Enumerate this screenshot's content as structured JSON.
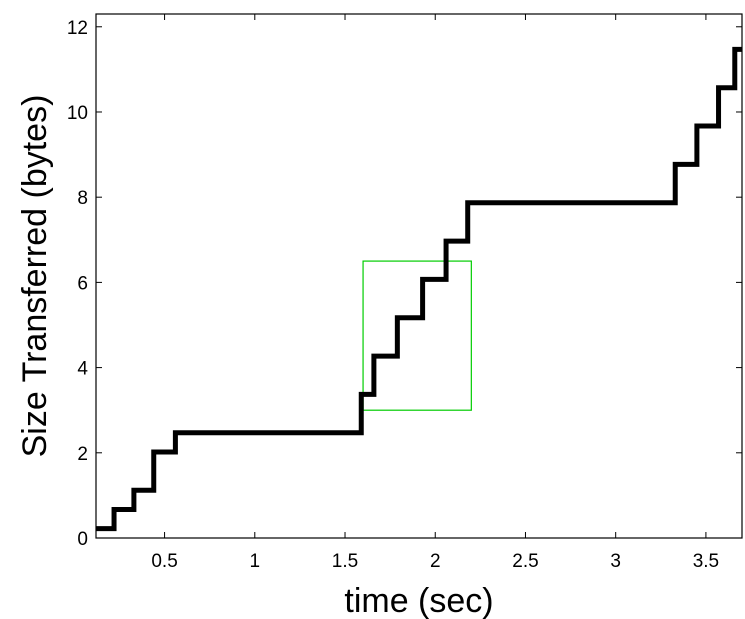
{
  "chart_data": {
    "type": "line",
    "title": "",
    "xlabel": "time (sec)",
    "ylabel": "Size Transferred (bytes)",
    "xlim": [
      0.12,
      3.7
    ],
    "ylim": [
      0,
      12.3
    ],
    "xticks": [
      0.5,
      1,
      1.5,
      2,
      2.5,
      3,
      3.5
    ],
    "xtick_labels": [
      "0.5",
      "1",
      "1.5",
      "2",
      "2.5",
      "3",
      "3.5"
    ],
    "yticks": [
      0,
      2,
      4,
      6,
      8,
      10,
      12
    ],
    "ytick_labels": [
      "0",
      "2",
      "4",
      "6",
      "8",
      "10",
      "12"
    ],
    "grid": false,
    "series": [
      {
        "color": "#000000",
        "step": true,
        "x": [
          0.12,
          0.22,
          0.33,
          0.44,
          0.56,
          1.59,
          1.66,
          1.79,
          1.93,
          2.06,
          2.18,
          3.33,
          3.45,
          3.57,
          3.66,
          3.7
        ],
        "y": [
          0.22,
          0.67,
          1.12,
          2.02,
          2.47,
          3.37,
          4.27,
          5.17,
          6.07,
          6.97,
          7.87,
          8.77,
          9.67,
          10.57,
          11.47,
          11.47
        ]
      }
    ],
    "annotations": [
      {
        "type": "rectangle",
        "color": "#00cc00",
        "x0": 1.6,
        "x1": 2.2,
        "y0": 3.0,
        "y1": 6.5
      }
    ]
  }
}
